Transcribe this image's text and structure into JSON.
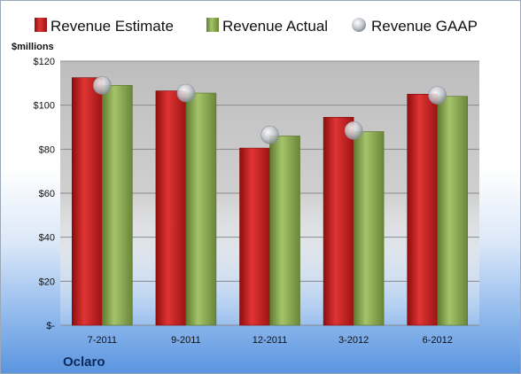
{
  "chart_data": {
    "type": "bar",
    "ylabel": "$millions",
    "company": "Oclaro",
    "categories": [
      "7-2011",
      "9-2011",
      "12-2011",
      "3-2012",
      "6-2012"
    ],
    "series": [
      {
        "name": "Revenue Estimate",
        "type": "bar",
        "color": "#cc2222",
        "values": [
          112.5,
          106.5,
          80.5,
          94.5,
          105.0
        ]
      },
      {
        "name": "Revenue Actual",
        "type": "bar",
        "color": "#8fad55",
        "values": [
          109.0,
          105.5,
          86.0,
          88.0,
          104.0
        ]
      },
      {
        "name": "Revenue GAAP",
        "type": "marker",
        "color": "#b8bcc4",
        "values": [
          109.0,
          105.5,
          86.5,
          88.5,
          104.5
        ]
      }
    ],
    "ylim": [
      0,
      120
    ],
    "yticks": [
      0,
      20,
      40,
      60,
      80,
      100,
      120
    ],
    "ytick_labels": [
      "$-",
      "$20",
      "$40",
      "$60",
      "$80",
      "$100",
      "$120"
    ],
    "grid": true,
    "legend": "top"
  }
}
